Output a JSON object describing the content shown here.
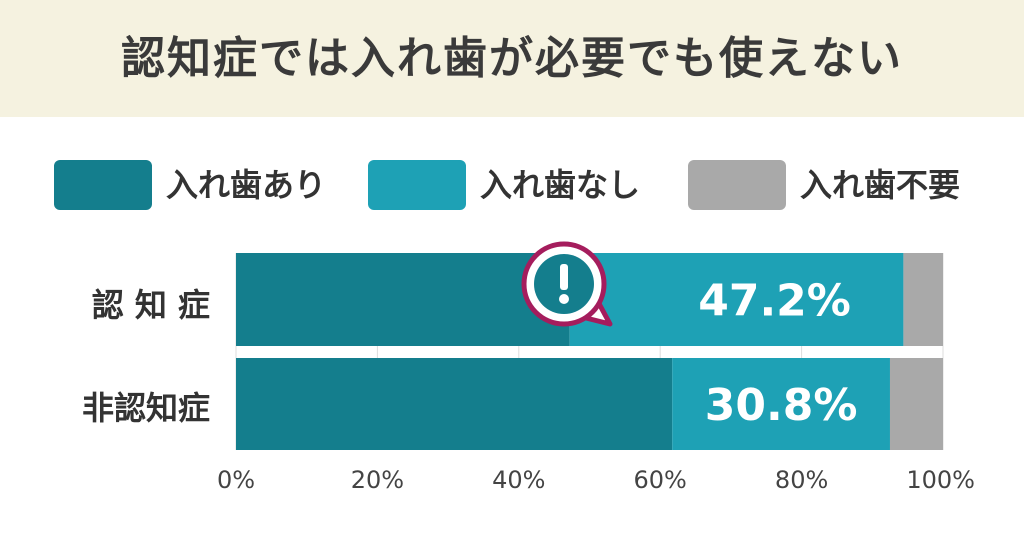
{
  "title": "認知症では入れ歯が必要でも使えない",
  "colors": {
    "banner": "#f5f2e0",
    "with_dentures": "#147e8d",
    "without_dentures": "#1ea1b5",
    "not_needed": "#a9a9a9",
    "alert": "#a51d5d"
  },
  "chart_data": {
    "type": "bar",
    "orientation": "horizontal",
    "stacked": true,
    "categories": [
      "認 知 症",
      "非認知症"
    ],
    "series": [
      {
        "name": "入れ歯あり",
        "values": [
          47.2,
          61.7
        ]
      },
      {
        "name": "入れ歯なし",
        "values": [
          47.2,
          30.8
        ]
      },
      {
        "name": "入れ歯不要",
        "values": [
          5.6,
          7.5
        ]
      }
    ],
    "data_labels": [
      "47.2%",
      "30.8%"
    ],
    "x_ticks": [
      "0%",
      "20%",
      "40%",
      "60%",
      "80%",
      "100%"
    ],
    "xlim": [
      0,
      100
    ],
    "legend": "top",
    "annotation_icon": "alert-speech-bubble-icon"
  }
}
